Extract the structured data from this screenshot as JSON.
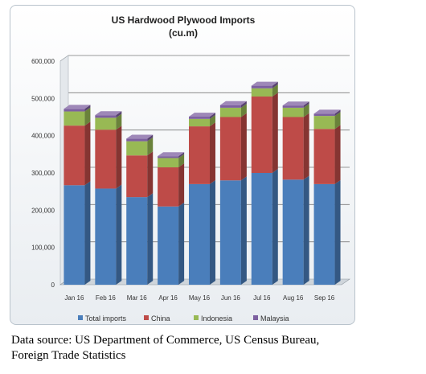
{
  "chart_data": {
    "type": "bar",
    "stacked": true,
    "three_d": true,
    "title": "US Hardwood Plywood Imports",
    "subtitle": "(cu.m)",
    "xlabel": "",
    "ylabel": "",
    "ylim": [
      0,
      600000
    ],
    "y_ticks": [
      0,
      100000,
      200000,
      300000,
      400000,
      500000,
      600000
    ],
    "y_tick_labels": [
      "0",
      "100,000",
      "200,000",
      "300,000",
      "400,000",
      "500,000",
      "600,000"
    ],
    "categories": [
      "Jan 16",
      "Feb 16",
      "Mar 16",
      "Apr 16",
      "May 16",
      "Jun 16",
      "Jul 16",
      "Aug 16",
      "Sep 16"
    ],
    "series": [
      {
        "name": "Total imports",
        "color": "#4a7ebb",
        "values": [
          267000,
          258000,
          235000,
          210000,
          270000,
          280000,
          300000,
          282000,
          270000
        ]
      },
      {
        "name": "China",
        "color": "#be4b48",
        "values": [
          160000,
          158000,
          112000,
          105000,
          155000,
          170000,
          205000,
          168000,
          148000
        ]
      },
      {
        "name": "Indonesia",
        "color": "#98b954",
        "values": [
          38000,
          32000,
          38000,
          25000,
          20000,
          25000,
          22000,
          25000,
          35000
        ]
      },
      {
        "name": "Malaysia",
        "color": "#7d60a0",
        "values": [
          7000,
          7000,
          7000,
          5000,
          6000,
          7000,
          7000,
          6000,
          6000
        ]
      }
    ],
    "grid": true,
    "legend_position": "bottom"
  },
  "caption": {
    "line1": "Data source: US Department of Commerce, US Census Bureau,",
    "line2": "Foreign Trade Statistics"
  }
}
